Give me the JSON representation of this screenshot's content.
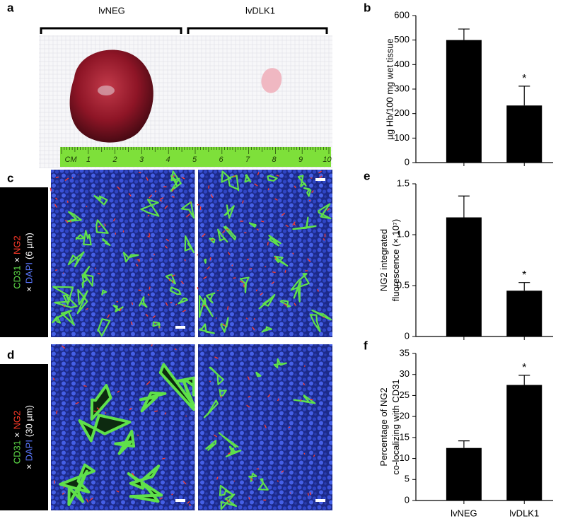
{
  "photo": {
    "letter": "a",
    "groups": [
      "lvNEG",
      "lvDLK1"
    ],
    "ruler": [
      "CM",
      "1",
      "2",
      "3",
      "4",
      "5",
      "6",
      "7",
      "8",
      "9",
      "10"
    ]
  },
  "micrographs": [
    {
      "letter": "c",
      "stain": {
        "line1": [
          "CD31",
          "×",
          "NG2"
        ],
        "line2": [
          "×",
          "DAPI",
          "(6 µm)"
        ]
      }
    },
    {
      "letter": "d",
      "stain": {
        "line1": [
          "CD31",
          "×",
          "NG2"
        ],
        "line2": [
          "×",
          "DAPI",
          "(30 µm)"
        ]
      }
    }
  ],
  "chart_data": [
    {
      "type": "bar",
      "panel": "b",
      "ylabel": [
        "µg Hb/100 mg wet tissue"
      ],
      "categories": [
        null,
        null
      ],
      "values": [
        500,
        233
      ],
      "errors": [
        45,
        79
      ],
      "significance": [
        null,
        "*"
      ],
      "color": "#000000",
      "ylim": [
        0,
        600
      ],
      "yticks": [
        0,
        100,
        200,
        300,
        400,
        500,
        600
      ]
    },
    {
      "type": "bar",
      "panel": "e",
      "ylabel": [
        "NG2 integrated",
        "fluorescence (× 10⁷)"
      ],
      "categories": [
        null,
        null
      ],
      "values": [
        1.17,
        0.45
      ],
      "errors": [
        0.21,
        0.08
      ],
      "significance": [
        null,
        "*"
      ],
      "color": "#000000",
      "ylim": [
        0,
        1.5
      ],
      "yticks": [
        0,
        0.5,
        {
          "value": 1,
          "label": "1.0"
        },
        1.5
      ]
    },
    {
      "type": "bar",
      "panel": "f",
      "ylabel": [
        "Percentage of NG2",
        "co-localizing with CD31"
      ],
      "categories": [
        "lvNEG",
        "lvDLK1"
      ],
      "values": [
        12.5,
        27.5
      ],
      "errors": [
        1.7,
        2.3
      ],
      "significance": [
        null,
        "*"
      ],
      "color": "#000000",
      "ylim": [
        0,
        35
      ],
      "yticks": [
        0,
        5,
        10,
        15,
        20,
        25,
        30,
        35
      ]
    }
  ]
}
